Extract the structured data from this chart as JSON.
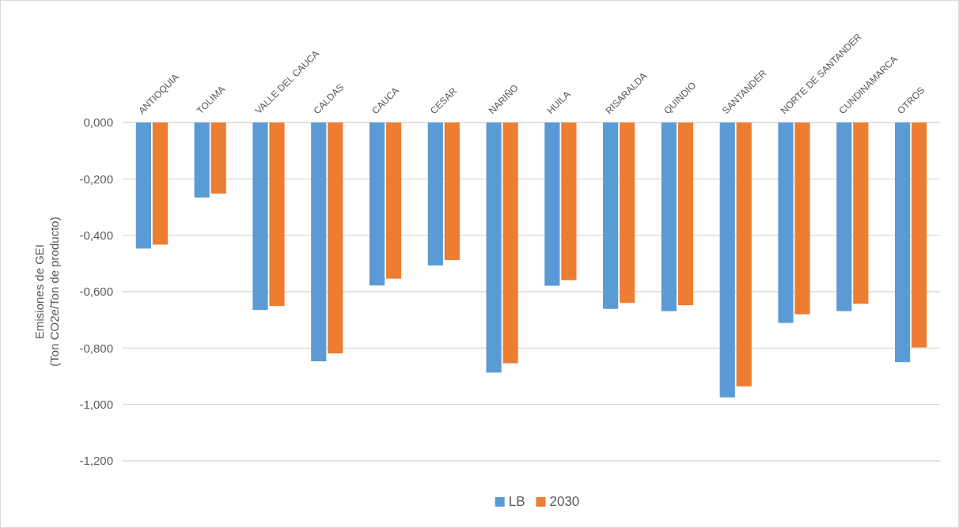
{
  "chart_data": {
    "type": "bar",
    "ylabel": "Emisiones de GEI\n(Ton CO2e/Ton de producto)",
    "categories": [
      "ANTIOQUIA",
      "TOLIMA",
      "VALLE DEL CAUCA",
      "CALDAS",
      "CAUCA",
      "CESAR",
      "NARIÑO",
      "HUILA",
      "RISARALDA",
      "QUINDIO",
      "SANTANDER",
      "NORTE DE SANTANDER",
      "CUNDINAMARCA",
      "OTROS"
    ],
    "series": [
      {
        "name": "LB",
        "color": "#5b9bd5",
        "values": [
          -0.447,
          -0.266,
          -0.665,
          -0.847,
          -0.578,
          -0.507,
          -0.887,
          -0.579,
          -0.661,
          -0.669,
          -0.975,
          -0.711,
          -0.669,
          -0.85
        ]
      },
      {
        "name": "2030",
        "color": "#ed7d31",
        "values": [
          -0.433,
          -0.252,
          -0.651,
          -0.819,
          -0.554,
          -0.488,
          -0.854,
          -0.559,
          -0.64,
          -0.648,
          -0.936,
          -0.68,
          -0.643,
          -0.798
        ]
      }
    ],
    "ylim": [
      -1.2,
      0
    ],
    "yticks": [
      {
        "value": 0,
        "label": "0,000"
      },
      {
        "value": -0.2,
        "label": "-0,200"
      },
      {
        "value": -0.4,
        "label": "-0,400"
      },
      {
        "value": -0.6,
        "label": "-0,600"
      },
      {
        "value": -0.8,
        "label": "-0,800"
      },
      {
        "value": -1,
        "label": "-1,000"
      },
      {
        "value": -1.2,
        "label": "-1,200"
      }
    ],
    "grid": "y",
    "legend": "bottom"
  }
}
